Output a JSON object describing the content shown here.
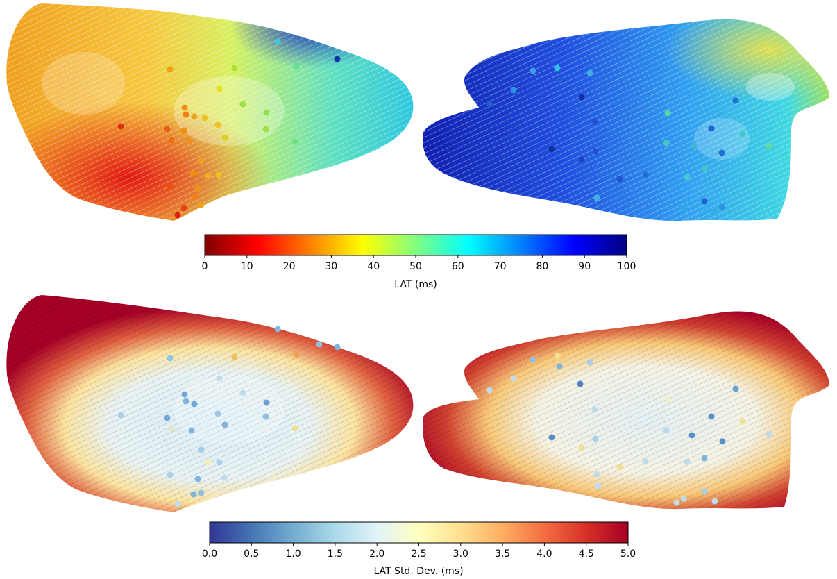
{
  "panels": [
    {
      "name": "lat-anterior",
      "metric": "lat",
      "view": "anterior"
    },
    {
      "name": "lat-posterior",
      "metric": "lat",
      "view": "posterior"
    },
    {
      "name": "std-anterior",
      "metric": "std",
      "view": "anterior"
    },
    {
      "name": "std-posterior",
      "metric": "std",
      "view": "posterior"
    }
  ],
  "colorbars": [
    {
      "name": "lat-colorbar",
      "label": "LAT (ms)",
      "colormap": "jet-reversed",
      "range": [
        0,
        100
      ],
      "ticks": [
        "0",
        "10",
        "20",
        "30",
        "40",
        "50",
        "60",
        "70",
        "80",
        "90",
        "100"
      ],
      "stops": [
        "#800000",
        "#ff0000",
        "#ff8000",
        "#ffff00",
        "#80ff80",
        "#00ffff",
        "#0080ff",
        "#0000ff",
        "#000080"
      ]
    },
    {
      "name": "std-colorbar",
      "label": "LAT Std. Dev. (ms)",
      "colormap": "RdYlBu-reversed",
      "range": [
        0,
        5
      ],
      "ticks": [
        "0.0",
        "0.5",
        "1.0",
        "1.5",
        "2.0",
        "2.5",
        "3.0",
        "3.5",
        "4.0",
        "4.5",
        "5.0"
      ],
      "stops": [
        "#313695",
        "#4575b4",
        "#74add1",
        "#abd9e9",
        "#e0f3f8",
        "#ffffbf",
        "#fee090",
        "#fdae61",
        "#f46d43",
        "#d73027",
        "#a50026"
      ]
    }
  ]
}
